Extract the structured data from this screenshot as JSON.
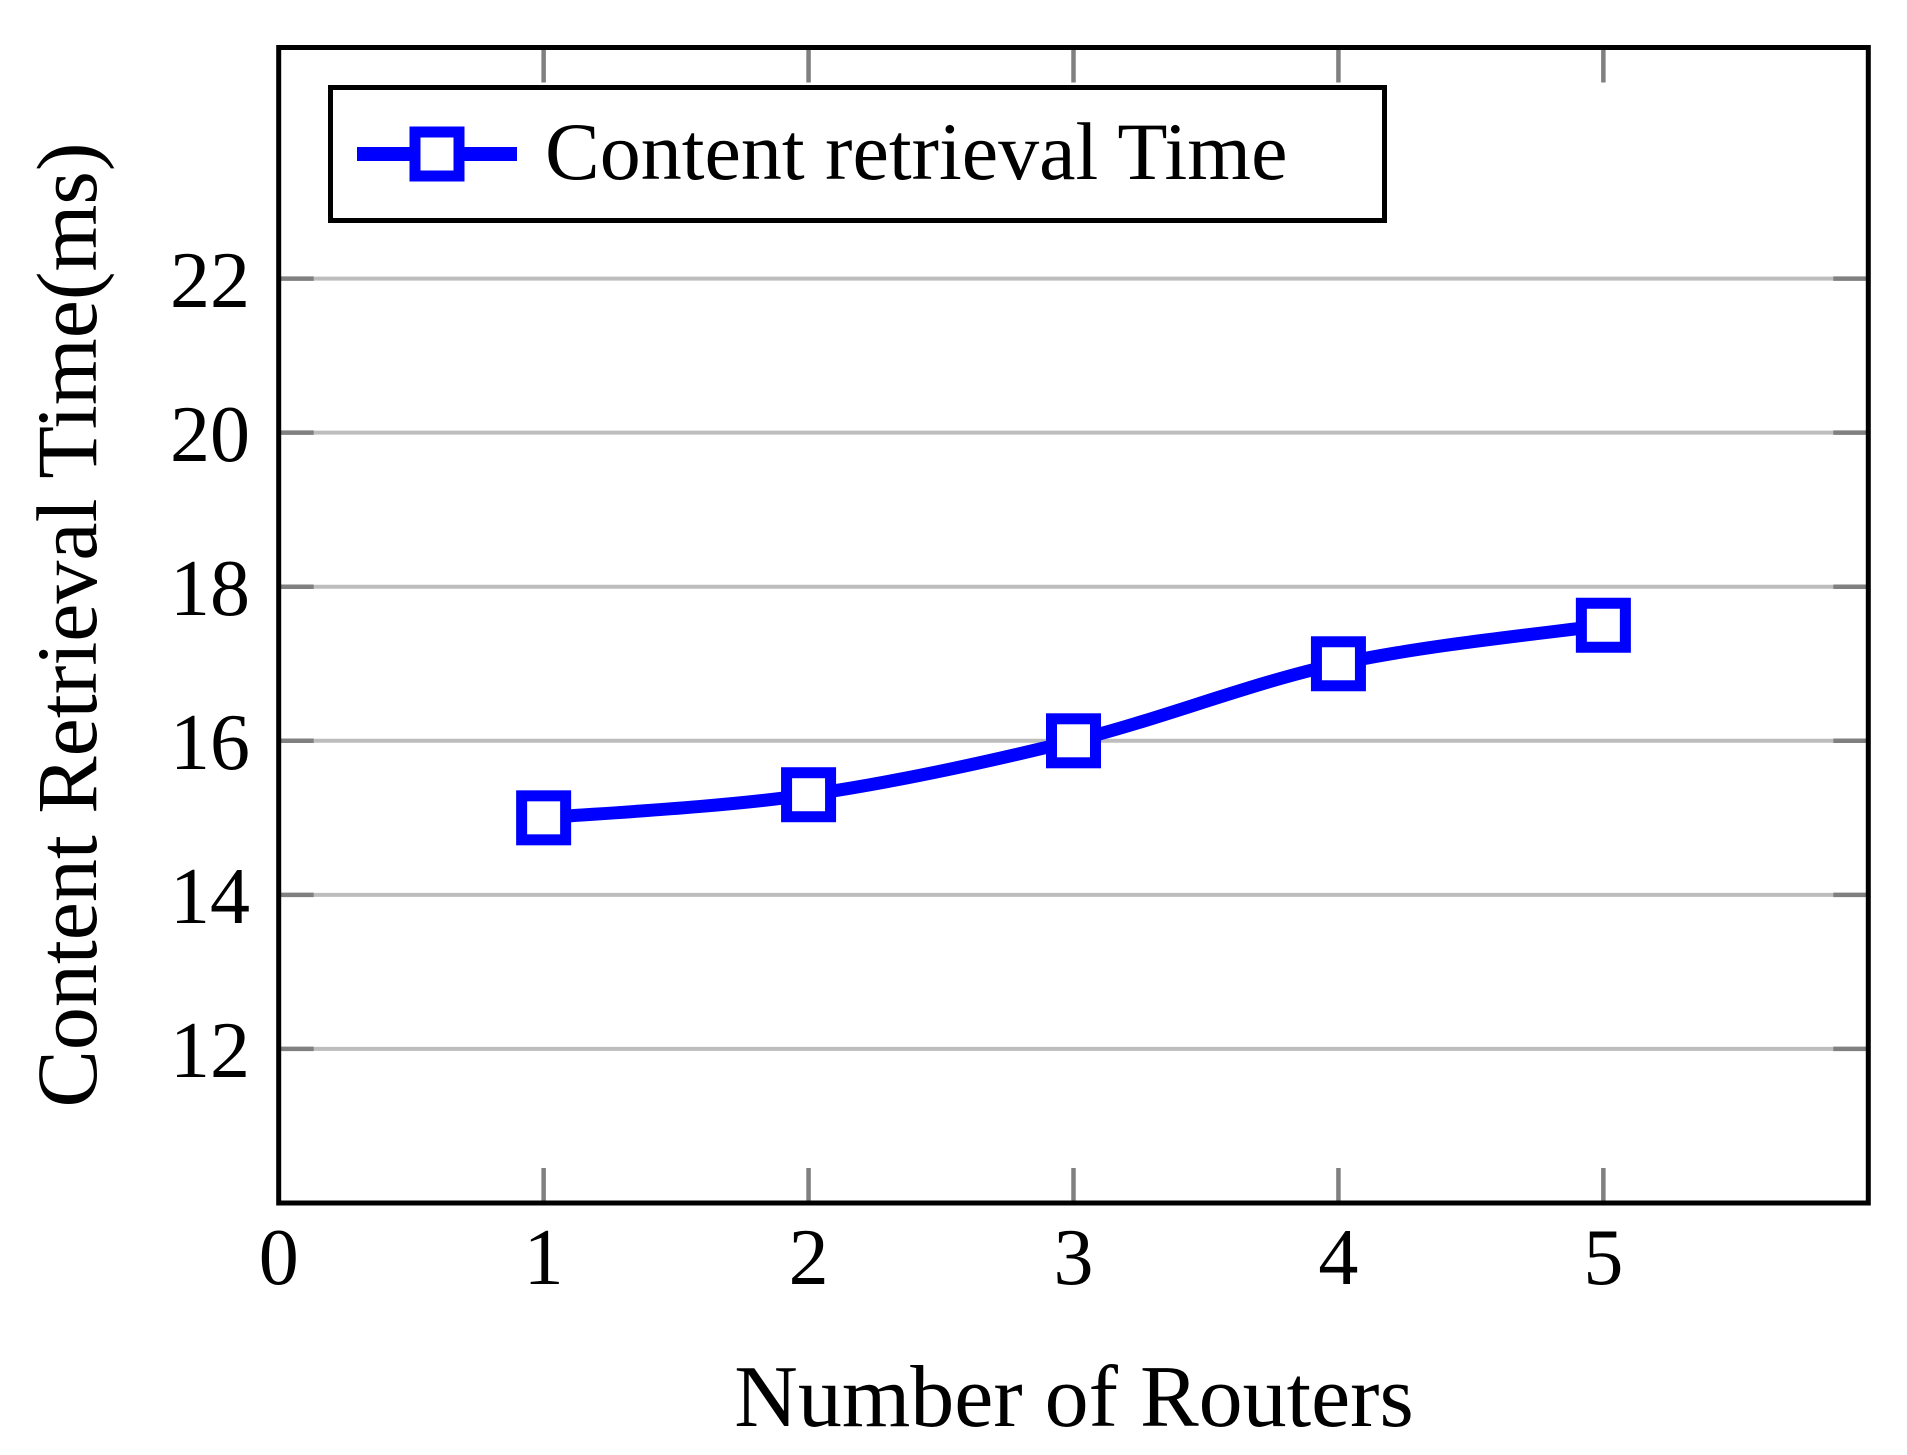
{
  "chart_data": {
    "type": "line",
    "title": "",
    "xlabel": "Number of Routers",
    "ylabel": "Content Retrieval Time(ms)",
    "x": [
      1,
      2,
      3,
      4,
      5
    ],
    "series": [
      {
        "name": "Content retrieval Time",
        "values": [
          15,
          15.3,
          16,
          17,
          17.5
        ],
        "color": "#0000ff",
        "marker": "open-square",
        "smooth": true
      }
    ],
    "xticks": [
      0,
      1,
      2,
      3,
      4,
      5
    ],
    "yticks": [
      12,
      14,
      16,
      18,
      20,
      22
    ],
    "xlim": [
      0,
      6
    ],
    "ylim": [
      10,
      25
    ],
    "grid": "horizontal-only",
    "legend_position": "top-left-inside",
    "colors": {
      "series": "#0000ff",
      "grid": "#bdbdbd",
      "tick": "#808080",
      "axis": "#000000",
      "background": "#ffffff",
      "text": "#000000"
    }
  }
}
